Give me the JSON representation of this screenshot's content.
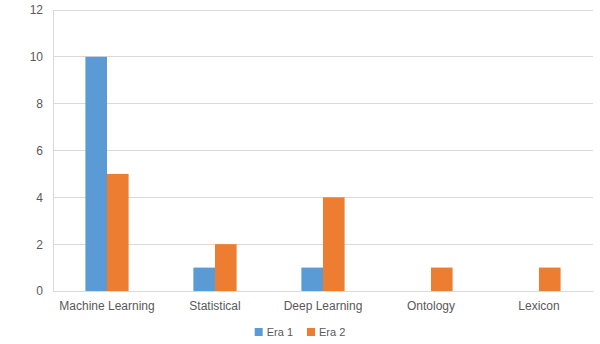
{
  "chart_data": {
    "type": "bar",
    "categories": [
      "Machine Learning",
      "Statistical",
      "Deep Learning",
      "Ontology",
      "Lexicon"
    ],
    "series": [
      {
        "name": "Era 1",
        "color": "#5b9bd5",
        "values": [
          10,
          1,
          1,
          0,
          0
        ]
      },
      {
        "name": "Era 2",
        "color": "#ed7d31",
        "values": [
          5,
          2,
          4,
          1,
          1
        ]
      }
    ],
    "ylim": [
      0,
      12
    ],
    "yticks": [
      0,
      2,
      4,
      6,
      8,
      10,
      12
    ],
    "grid": true,
    "legend": "bottom"
  }
}
